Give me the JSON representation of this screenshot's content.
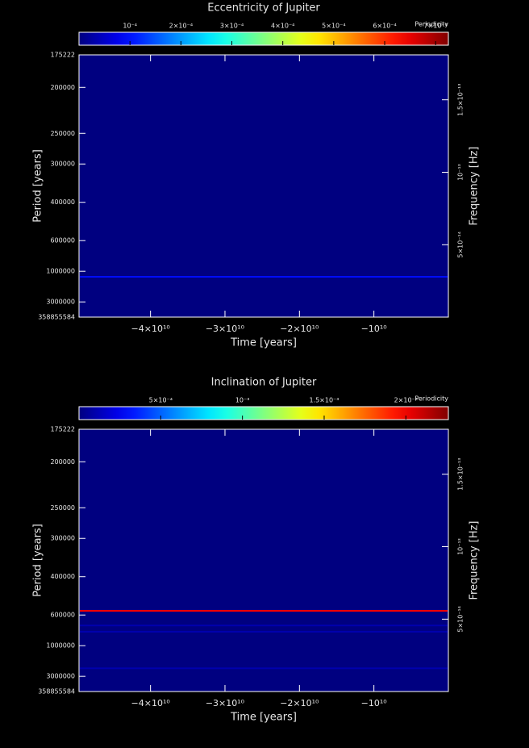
{
  "chart_data": [
    {
      "type": "heatmap",
      "title": "Eccentricity of Jupiter",
      "colorbar_label": "Periodicity",
      "clim": [
        0,
        0.000725
      ],
      "cticks": [
        {
          "value": 0.0001,
          "label": "10⁻⁴"
        },
        {
          "value": 0.0002,
          "label": "2×10⁻⁴"
        },
        {
          "value": 0.0003,
          "label": "3×10⁻⁴"
        },
        {
          "value": 0.0004,
          "label": "4×10⁻⁴"
        },
        {
          "value": 0.0005,
          "label": "5×10⁻⁴"
        },
        {
          "value": 0.0006,
          "label": "6×10⁻⁴"
        },
        {
          "value": 0.0007,
          "label": "7×10⁻⁴"
        }
      ],
      "xlabel": "Time [years]",
      "ylabel": "Period [years]",
      "y2label": "Frequency [Hz]",
      "xlim": [
        -49600000000,
        0
      ],
      "xticks": [
        {
          "value": -40000000000,
          "label": "−4×10¹⁰"
        },
        {
          "value": -30000000000,
          "label": "−3×10¹⁰"
        },
        {
          "value": -20000000000,
          "label": "−2×10¹⁰"
        },
        {
          "value": -10000000000,
          "label": "−10¹⁰"
        }
      ],
      "ylim": [
        175222,
        358855584
      ],
      "yscale": "reciprocal",
      "yticks": [
        175222,
        200000,
        250000,
        300000,
        400000,
        600000,
        1000000,
        3000000,
        358855584
      ],
      "y2lim": [
        8.8e-17,
        1.81e-13
      ],
      "y2ticks": [
        {
          "value": 1.5e-13,
          "label": "1.5×10⁻¹³"
        },
        {
          "value": 1e-13,
          "label": "10⁻¹³"
        },
        {
          "value": 5e-14,
          "label": "5×10⁻¹⁴"
        }
      ],
      "bands": [
        {
          "period": 1136000,
          "value": 0.0001
        }
      ]
    },
    {
      "type": "heatmap",
      "title": "Inclination of Jupiter",
      "colorbar_label": "Periodicity",
      "clim": [
        0,
        0.00226
      ],
      "cticks": [
        {
          "value": 0.0005,
          "label": "5×10⁻⁴"
        },
        {
          "value": 0.001,
          "label": "10⁻³"
        },
        {
          "value": 0.0015,
          "label": "1.5×10⁻³"
        },
        {
          "value": 0.002,
          "label": "2×10⁻³"
        }
      ],
      "xlabel": "Time [years]",
      "ylabel": "Period [years]",
      "y2label": "Frequency [Hz]",
      "xlim": [
        -49600000000,
        0
      ],
      "xticks": [
        {
          "value": -40000000000,
          "label": "−4×10¹⁰"
        },
        {
          "value": -30000000000,
          "label": "−3×10¹⁰"
        },
        {
          "value": -20000000000,
          "label": "−2×10¹⁰"
        },
        {
          "value": -10000000000,
          "label": "−10¹⁰"
        }
      ],
      "ylim": [
        175222,
        358855584
      ],
      "yscale": "reciprocal",
      "yticks": [
        175222,
        200000,
        250000,
        300000,
        400000,
        600000,
        1000000,
        3000000,
        358855584
      ],
      "y2lim": [
        8.8e-17,
        1.81e-13
      ],
      "y2ticks": [
        {
          "value": 1.5e-13,
          "label": "1.5×10⁻¹³"
        },
        {
          "value": 1e-13,
          "label": "10⁻¹³"
        },
        {
          "value": 5e-14,
          "label": "5×10⁻¹⁴"
        }
      ],
      "bands": [
        {
          "period": 569000,
          "value": 0.002
        },
        {
          "period": 695000,
          "value": 0.0001
        },
        {
          "period": 767000,
          "value": 0.0001
        },
        {
          "period": 1970000,
          "value": 0.0001
        }
      ]
    }
  ]
}
